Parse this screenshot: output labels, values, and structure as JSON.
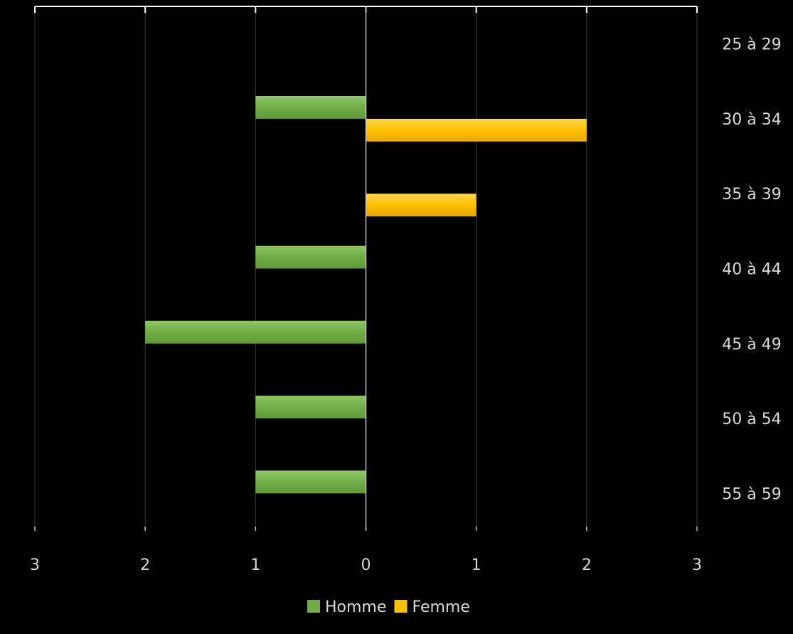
{
  "chart_data": {
    "type": "bar",
    "orientation": "horizontal",
    "layout": "population-pyramid",
    "categories": [
      "25 à 29",
      "30 à 34",
      "35 à 39",
      "40 à 44",
      "45 à 49",
      "50 à 54",
      "55 à 59"
    ],
    "series": [
      {
        "name": "Homme",
        "side": "left",
        "values": [
          0,
          1,
          0,
          1,
          2,
          1,
          1
        ]
      },
      {
        "name": "Femme",
        "side": "right",
        "values": [
          0,
          2,
          1,
          0,
          0,
          0,
          0
        ]
      }
    ],
    "xticks": [
      -3,
      -2,
      -1,
      0,
      1,
      2,
      3
    ],
    "xtick_labels": [
      "3",
      "2",
      "1",
      "0",
      "1",
      "2",
      "3"
    ],
    "xlim": [
      -3,
      3
    ],
    "grid": true,
    "legend": "bottom",
    "colors": {
      "background": "#000000",
      "Homme": "#70ad47",
      "Femme": "#ffc000",
      "grid": "#3a3a3a",
      "axis": "#bfbfbf",
      "text": "#d9d9d9"
    }
  }
}
